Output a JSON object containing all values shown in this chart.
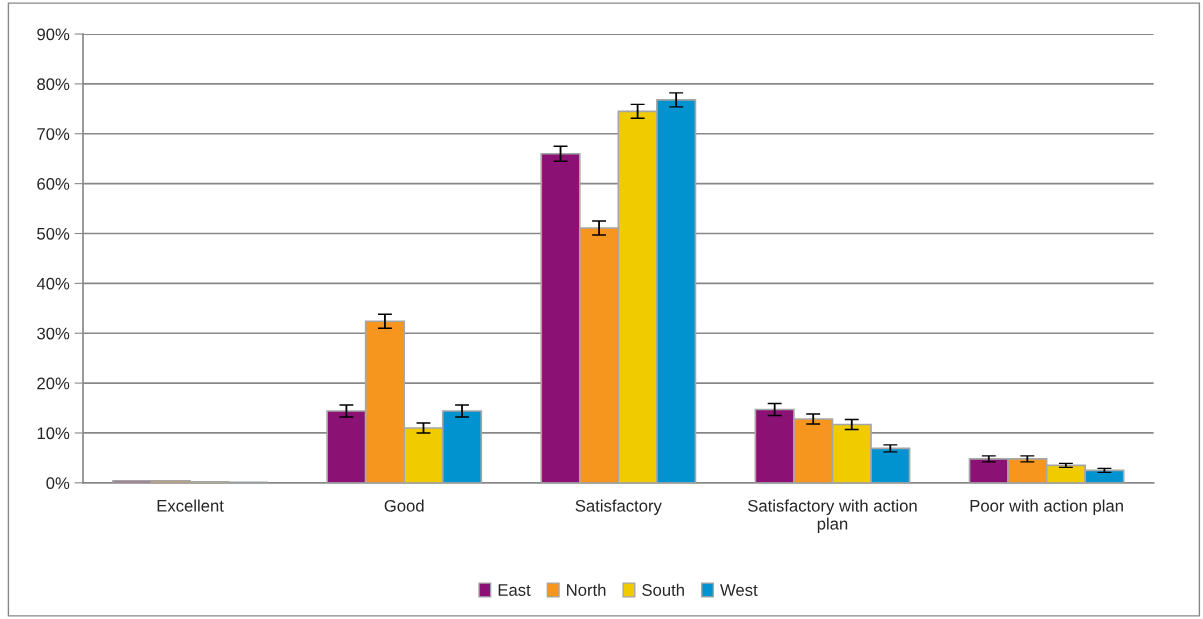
{
  "chart_data": {
    "type": "bar",
    "categories": [
      "Excellent",
      "Good",
      "Satisfactory",
      "Satisfactory with action plan",
      "Poor with action plan"
    ],
    "series": [
      {
        "name": "East",
        "color": "#8b1174",
        "values": [
          0.4,
          14.4,
          66.0,
          14.7,
          4.8
        ],
        "errors": [
          null,
          1.2,
          1.5,
          1.2,
          0.6
        ]
      },
      {
        "name": "North",
        "color": "#f7961e",
        "values": [
          0.4,
          32.4,
          51.1,
          12.8,
          4.8
        ],
        "errors": [
          null,
          1.4,
          1.4,
          1.0,
          0.6
        ]
      },
      {
        "name": "South",
        "color": "#f0cb00",
        "values": [
          0.2,
          11.0,
          74.5,
          11.7,
          3.5
        ],
        "errors": [
          null,
          1.0,
          1.4,
          1.0,
          0.4
        ]
      },
      {
        "name": "West",
        "color": "#0093d0",
        "values": [
          0.1,
          14.4,
          76.8,
          6.9,
          2.5
        ],
        "errors": [
          null,
          1.2,
          1.4,
          0.7,
          0.4
        ]
      }
    ],
    "ylim": [
      0,
      90
    ],
    "yticks": [
      {
        "value": 0,
        "label": "0%"
      },
      {
        "value": 10,
        "label": "10%"
      },
      {
        "value": 20,
        "label": "20%"
      },
      {
        "value": 30,
        "label": "30%"
      },
      {
        "value": 40,
        "label": "40%"
      },
      {
        "value": 50,
        "label": "50%"
      },
      {
        "value": 60,
        "label": "60%"
      },
      {
        "value": 70,
        "label": "70%"
      },
      {
        "value": 80,
        "label": "80%"
      },
      {
        "value": 90,
        "label": "90%"
      }
    ],
    "grid": "y",
    "legend": "bottom"
  }
}
